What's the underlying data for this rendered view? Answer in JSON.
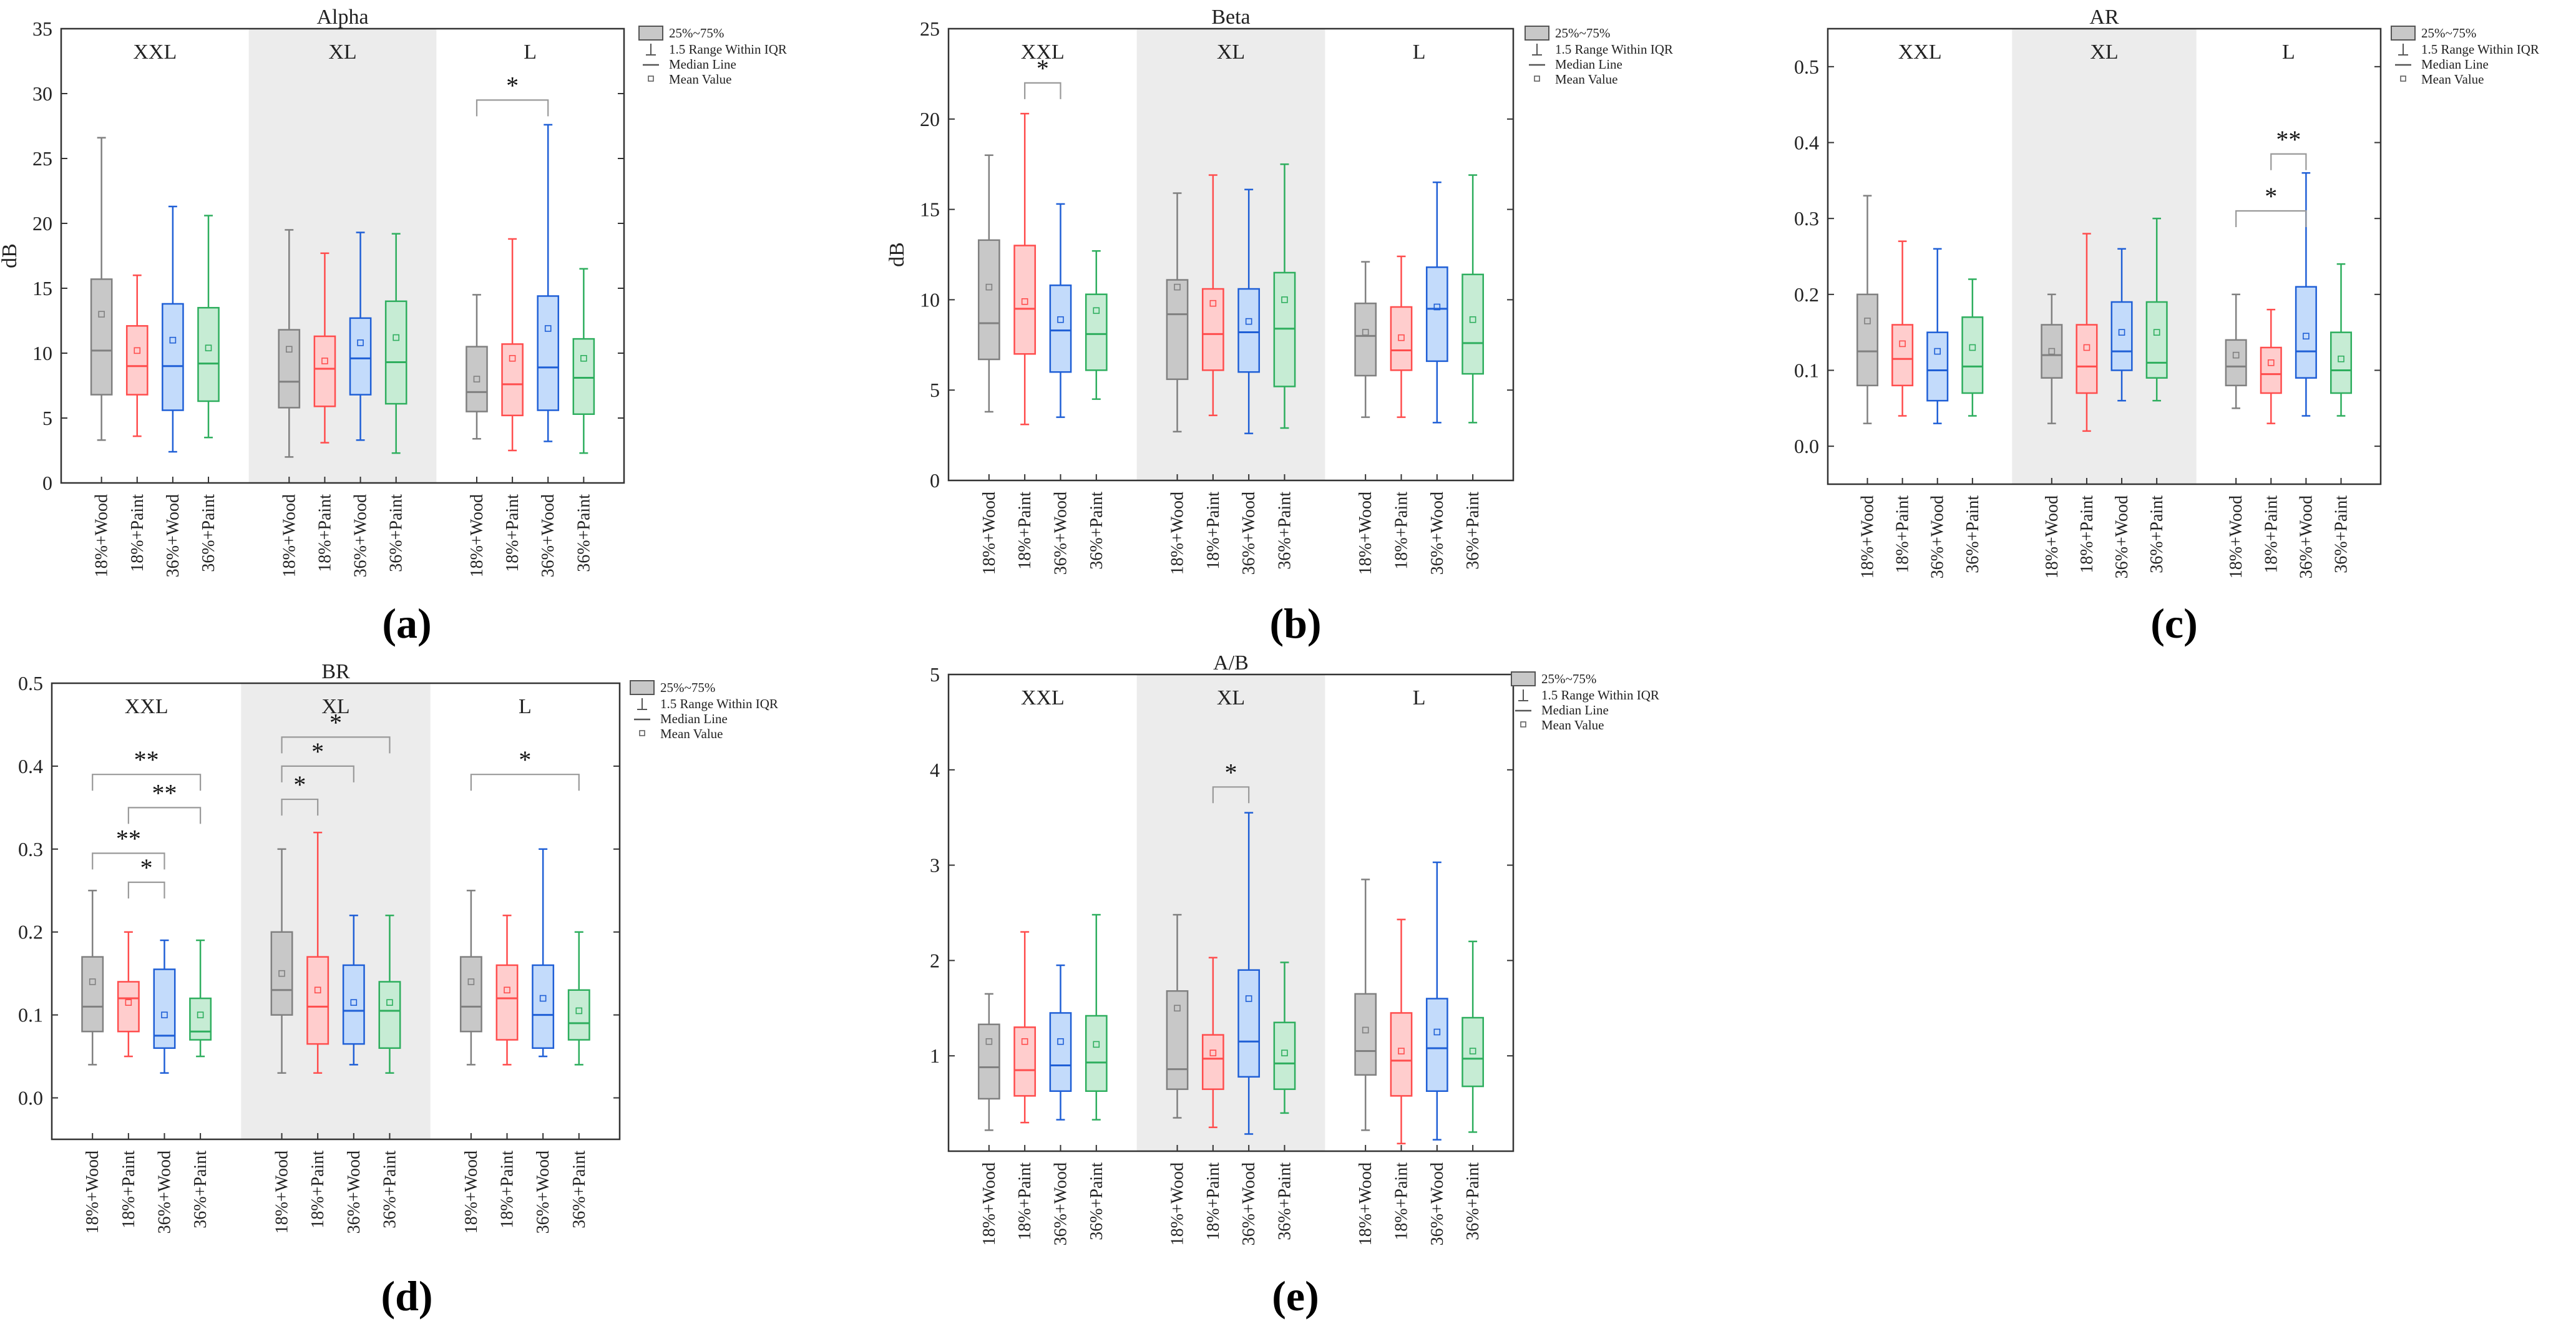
{
  "figure": {
    "categories": [
      "18%+Wood",
      "18%+Paint",
      "36%+Wood",
      "36%+Paint"
    ],
    "colors": {
      "series": [
        "#808080",
        "#ff4d4d",
        "#1f5fd6",
        "#2eae5e"
      ],
      "fills": [
        "#c8c8c8",
        "#ffcdcd",
        "#c3dbfb",
        "#c6ecd4"
      ],
      "shade": "#ececec",
      "axis": "#333333"
    },
    "legend": {
      "box_label": "25%~75%",
      "range_label": "1.5 Range Within IQR",
      "median_label": "Median Line",
      "mean_label": "Mean Value"
    }
  },
  "chart_data": [
    {
      "type": "box",
      "panel": "a",
      "panel_label": "(a)",
      "title": "Alpha",
      "ylabel": "dB",
      "ylim": [
        0,
        35
      ],
      "yticks": [
        0,
        5,
        10,
        15,
        20,
        25,
        30,
        35
      ],
      "groups": [
        {
          "name": "XXL",
          "shaded": false,
          "category_labels": [
            "18%+Wood",
            "18%+Paint",
            "36%+Wood",
            "36%+Paint"
          ],
          "boxes": [
            {
              "min": 3.3,
              "q1": 6.8,
              "median": 10.2,
              "q3": 15.7,
              "max": 26.6,
              "mean": 13.0
            },
            {
              "min": 3.6,
              "q1": 6.8,
              "median": 9.0,
              "q3": 12.1,
              "max": 16.0,
              "mean": 10.2
            },
            {
              "min": 2.4,
              "q1": 5.6,
              "median": 9.0,
              "q3": 13.8,
              "max": 21.3,
              "mean": 11.0
            },
            {
              "min": 3.5,
              "q1": 6.3,
              "median": 9.2,
              "q3": 13.5,
              "max": 20.6,
              "mean": 10.4
            }
          ]
        },
        {
          "name": "XL",
          "shaded": true,
          "category_labels": [
            "18%+Wood",
            "18%+Paint",
            "36%+Wood",
            "36%+Paint"
          ],
          "boxes": [
            {
              "min": 2.0,
              "q1": 5.8,
              "median": 7.8,
              "q3": 11.8,
              "max": 19.5,
              "mean": 10.3
            },
            {
              "min": 3.1,
              "q1": 5.9,
              "median": 8.8,
              "q3": 11.3,
              "max": 17.7,
              "mean": 9.4
            },
            {
              "min": 3.3,
              "q1": 6.8,
              "median": 9.6,
              "q3": 12.7,
              "max": 19.3,
              "mean": 10.8
            },
            {
              "min": 2.3,
              "q1": 6.1,
              "median": 9.3,
              "q3": 14.0,
              "max": 19.2,
              "mean": 11.2
            }
          ]
        },
        {
          "name": "L",
          "shaded": false,
          "category_labels": [
            "18%+Wood",
            "18%+Paint",
            "36%+Wood",
            "36%+Paint"
          ],
          "boxes": [
            {
              "min": 3.4,
              "q1": 5.5,
              "median": 7.0,
              "q3": 10.5,
              "max": 14.5,
              "mean": 8.0
            },
            {
              "min": 2.5,
              "q1": 5.2,
              "median": 7.6,
              "q3": 10.7,
              "max": 18.8,
              "mean": 9.6
            },
            {
              "min": 3.2,
              "q1": 5.6,
              "median": 8.9,
              "q3": 14.4,
              "max": 27.6,
              "mean": 11.9
            },
            {
              "min": 2.3,
              "q1": 5.3,
              "median": 8.1,
              "q3": 11.1,
              "max": 16.5,
              "mean": 9.6
            }
          ]
        }
      ],
      "significance": [
        {
          "group": 2,
          "from": 0,
          "to": 2,
          "level": 29.5,
          "label": "*"
        }
      ]
    },
    {
      "type": "box",
      "panel": "b",
      "panel_label": "(b)",
      "title": "Beta",
      "ylabel": "dB",
      "ylim": [
        0,
        25
      ],
      "yticks": [
        0,
        5,
        10,
        15,
        20,
        25
      ],
      "groups": [
        {
          "name": "XXL",
          "shaded": false,
          "category_labels": [
            "18%+Wood",
            "18%+Paint",
            "36%+Wood",
            "36%+Paint"
          ],
          "boxes": [
            {
              "min": 3.8,
              "q1": 6.7,
              "median": 8.7,
              "q3": 13.3,
              "max": 18.0,
              "mean": 10.7
            },
            {
              "min": 3.1,
              "q1": 7.0,
              "median": 9.5,
              "q3": 13.0,
              "max": 20.3,
              "mean": 9.9
            },
            {
              "min": 3.5,
              "q1": 6.0,
              "median": 8.3,
              "q3": 10.8,
              "max": 15.3,
              "mean": 8.9
            },
            {
              "min": 4.5,
              "q1": 6.1,
              "median": 8.1,
              "q3": 10.3,
              "max": 12.7,
              "mean": 9.4
            }
          ]
        },
        {
          "name": "XL",
          "shaded": true,
          "category_labels": [
            "18%+Wood",
            "18%+Paint",
            "36%+Wood",
            "36%+Paint"
          ],
          "boxes": [
            {
              "min": 2.7,
              "q1": 5.6,
              "median": 9.2,
              "q3": 11.1,
              "max": 15.9,
              "mean": 10.7
            },
            {
              "min": 3.6,
              "q1": 6.1,
              "median": 8.1,
              "q3": 10.6,
              "max": 16.9,
              "mean": 9.8
            },
            {
              "min": 2.6,
              "q1": 6.0,
              "median": 8.2,
              "q3": 10.6,
              "max": 16.1,
              "mean": 8.8
            },
            {
              "min": 2.9,
              "q1": 5.2,
              "median": 8.4,
              "q3": 11.5,
              "max": 17.5,
              "mean": 10.0
            }
          ]
        },
        {
          "name": "L",
          "shaded": false,
          "category_labels": [
            "18%+Wood",
            "18%+Paint",
            "36%+Wood",
            "36%+Paint"
          ],
          "boxes": [
            {
              "min": 3.5,
              "q1": 5.8,
              "median": 8.0,
              "q3": 9.8,
              "max": 12.1,
              "mean": 8.2
            },
            {
              "min": 3.5,
              "q1": 6.1,
              "median": 7.2,
              "q3": 9.6,
              "max": 12.4,
              "mean": 7.9
            },
            {
              "min": 3.2,
              "q1": 6.6,
              "median": 9.5,
              "q3": 11.8,
              "max": 16.5,
              "mean": 9.6
            },
            {
              "min": 3.2,
              "q1": 5.9,
              "median": 7.6,
              "q3": 11.4,
              "max": 16.9,
              "mean": 8.9
            }
          ]
        }
      ],
      "significance": [
        {
          "group": 0,
          "from": 1,
          "to": 2,
          "level": 22.0,
          "label": "*"
        }
      ]
    },
    {
      "type": "box",
      "panel": "c",
      "panel_label": "(c)",
      "title": "AR",
      "ylabel": "",
      "ylim": [
        -0.05,
        0.55
      ],
      "yticks": [
        0.0,
        0.1,
        0.2,
        0.3,
        0.4,
        0.5
      ],
      "groups": [
        {
          "name": "XXL",
          "shaded": false,
          "category_labels": [
            "18%+Wood",
            "18%+Paint",
            "36%+Wood",
            "36%+Paint"
          ],
          "boxes": [
            {
              "min": 0.03,
              "q1": 0.08,
              "median": 0.125,
              "q3": 0.2,
              "max": 0.33,
              "mean": 0.165
            },
            {
              "min": 0.04,
              "q1": 0.08,
              "median": 0.115,
              "q3": 0.16,
              "max": 0.27,
              "mean": 0.135
            },
            {
              "min": 0.03,
              "q1": 0.06,
              "median": 0.1,
              "q3": 0.15,
              "max": 0.26,
              "mean": 0.125
            },
            {
              "min": 0.04,
              "q1": 0.07,
              "median": 0.105,
              "q3": 0.17,
              "max": 0.22,
              "mean": 0.13
            }
          ]
        },
        {
          "name": "XL",
          "shaded": true,
          "category_labels": [
            "18%+Wood",
            "18%+Paint",
            "36%+Wood",
            "36%+Paint"
          ],
          "boxes": [
            {
              "min": 0.03,
              "q1": 0.09,
              "median": 0.12,
              "q3": 0.16,
              "max": 0.2,
              "mean": 0.125
            },
            {
              "min": 0.02,
              "q1": 0.07,
              "median": 0.105,
              "q3": 0.16,
              "max": 0.28,
              "mean": 0.13
            },
            {
              "min": 0.06,
              "q1": 0.1,
              "median": 0.125,
              "q3": 0.19,
              "max": 0.26,
              "mean": 0.15
            },
            {
              "min": 0.06,
              "q1": 0.09,
              "median": 0.11,
              "q3": 0.19,
              "max": 0.3,
              "mean": 0.15
            }
          ]
        },
        {
          "name": "L",
          "shaded": false,
          "category_labels": [
            "18%+Wood",
            "18%+Paint",
            "36%+Wood",
            "36%+Paint"
          ],
          "boxes": [
            {
              "min": 0.05,
              "q1": 0.08,
              "median": 0.105,
              "q3": 0.14,
              "max": 0.2,
              "mean": 0.12
            },
            {
              "min": 0.03,
              "q1": 0.07,
              "median": 0.095,
              "q3": 0.13,
              "max": 0.18,
              "mean": 0.11
            },
            {
              "min": 0.04,
              "q1": 0.09,
              "median": 0.125,
              "q3": 0.21,
              "max": 0.36,
              "mean": 0.145
            },
            {
              "min": 0.04,
              "q1": 0.07,
              "median": 0.1,
              "q3": 0.15,
              "max": 0.24,
              "mean": 0.115
            }
          ]
        }
      ],
      "significance": [
        {
          "group": 2,
          "from": 1,
          "to": 2,
          "level": 0.385,
          "label": "**"
        },
        {
          "group": 2,
          "from": 0,
          "to": 2,
          "level": 0.31,
          "label": "*"
        }
      ]
    },
    {
      "type": "box",
      "panel": "d",
      "panel_label": "(d)",
      "title": "BR",
      "ylabel": "",
      "ylim": [
        -0.05,
        0.5
      ],
      "yticks": [
        0.0,
        0.1,
        0.2,
        0.3,
        0.4,
        0.5
      ],
      "groups": [
        {
          "name": "XXL",
          "shaded": false,
          "category_labels": [
            "18%+Wood",
            "18%+Paint",
            "36%+Wood",
            "36%+Paint"
          ],
          "boxes": [
            {
              "min": 0.04,
              "q1": 0.08,
              "median": 0.11,
              "q3": 0.17,
              "max": 0.25,
              "mean": 0.14
            },
            {
              "min": 0.05,
              "q1": 0.08,
              "median": 0.12,
              "q3": 0.14,
              "max": 0.2,
              "mean": 0.115
            },
            {
              "min": 0.03,
              "q1": 0.06,
              "median": 0.075,
              "q3": 0.155,
              "max": 0.19,
              "mean": 0.1
            },
            {
              "min": 0.05,
              "q1": 0.07,
              "median": 0.08,
              "q3": 0.12,
              "max": 0.19,
              "mean": 0.1
            }
          ]
        },
        {
          "name": "XL",
          "shaded": true,
          "category_labels": [
            "18%+Wood",
            "18%+Paint",
            "36%+Wood",
            "36%+Paint"
          ],
          "boxes": [
            {
              "min": 0.03,
              "q1": 0.1,
              "median": 0.13,
              "q3": 0.2,
              "max": 0.3,
              "mean": 0.15
            },
            {
              "min": 0.03,
              "q1": 0.065,
              "median": 0.11,
              "q3": 0.17,
              "max": 0.32,
              "mean": 0.13
            },
            {
              "min": 0.04,
              "q1": 0.065,
              "median": 0.105,
              "q3": 0.16,
              "max": 0.22,
              "mean": 0.115
            },
            {
              "min": 0.03,
              "q1": 0.06,
              "median": 0.105,
              "q3": 0.14,
              "max": 0.22,
              "mean": 0.115
            }
          ]
        },
        {
          "name": "L",
          "shaded": false,
          "category_labels": [
            "18%+Wood",
            "18%+Paint",
            "36%+Wood",
            "36%+Paint"
          ],
          "boxes": [
            {
              "min": 0.04,
              "q1": 0.08,
              "median": 0.11,
              "q3": 0.17,
              "max": 0.25,
              "mean": 0.14
            },
            {
              "min": 0.04,
              "q1": 0.07,
              "median": 0.12,
              "q3": 0.16,
              "max": 0.22,
              "mean": 0.13
            },
            {
              "min": 0.05,
              "q1": 0.06,
              "median": 0.1,
              "q3": 0.16,
              "max": 0.3,
              "mean": 0.12
            },
            {
              "min": 0.04,
              "q1": 0.07,
              "median": 0.09,
              "q3": 0.13,
              "max": 0.2,
              "mean": 0.105
            }
          ]
        }
      ],
      "significance": [
        {
          "group": 0,
          "from": 1,
          "to": 2,
          "level": 0.26,
          "label": "*"
        },
        {
          "group": 0,
          "from": 0,
          "to": 2,
          "level": 0.295,
          "label": "**"
        },
        {
          "group": 0,
          "from": 1,
          "to": 3,
          "level": 0.35,
          "label": "**"
        },
        {
          "group": 0,
          "from": 0,
          "to": 3,
          "level": 0.39,
          "label": "**"
        },
        {
          "group": 1,
          "from": 0,
          "to": 1,
          "level": 0.36,
          "label": "*"
        },
        {
          "group": 1,
          "from": 0,
          "to": 2,
          "level": 0.4,
          "label": "*"
        },
        {
          "group": 1,
          "from": 0,
          "to": 3,
          "level": 0.435,
          "label": "*"
        },
        {
          "group": 2,
          "from": 0,
          "to": 3,
          "level": 0.39,
          "label": "*"
        }
      ]
    },
    {
      "type": "box",
      "panel": "e",
      "panel_label": "(e)",
      "title": "A/B",
      "ylabel": "",
      "ylim": [
        0,
        5
      ],
      "yticks": [
        1,
        2,
        3,
        4,
        5
      ],
      "groups": [
        {
          "name": "XXL",
          "shaded": false,
          "category_labels": [
            "18%+Wood",
            "18%+Paint",
            "36%+Wood",
            "36%+Paint"
          ],
          "boxes": [
            {
              "min": 0.22,
              "q1": 0.55,
              "median": 0.88,
              "q3": 1.33,
              "max": 1.65,
              "mean": 1.15
            },
            {
              "min": 0.3,
              "q1": 0.58,
              "median": 0.85,
              "q3": 1.3,
              "max": 2.3,
              "mean": 1.15
            },
            {
              "min": 0.33,
              "q1": 0.63,
              "median": 0.9,
              "q3": 1.45,
              "max": 1.95,
              "mean": 1.15
            },
            {
              "min": 0.33,
              "q1": 0.63,
              "median": 0.93,
              "q3": 1.42,
              "max": 2.48,
              "mean": 1.12
            }
          ]
        },
        {
          "name": "XL",
          "shaded": true,
          "category_labels": [
            "18%+Wood",
            "18%+Paint",
            "36%+Wood",
            "36%+Paint"
          ],
          "boxes": [
            {
              "min": 0.35,
              "q1": 0.65,
              "median": 0.86,
              "q3": 1.68,
              "max": 2.48,
              "mean": 1.5
            },
            {
              "min": 0.25,
              "q1": 0.65,
              "median": 0.97,
              "q3": 1.22,
              "max": 2.03,
              "mean": 1.03
            },
            {
              "min": 0.18,
              "q1": 0.78,
              "median": 1.15,
              "q3": 1.9,
              "max": 3.55,
              "mean": 1.6
            },
            {
              "min": 0.4,
              "q1": 0.65,
              "median": 0.92,
              "q3": 1.35,
              "max": 1.98,
              "mean": 1.03
            }
          ]
        },
        {
          "name": "L",
          "shaded": false,
          "category_labels": [
            "18%+Wood",
            "18%+Paint",
            "36%+Wood",
            "36%+Paint"
          ],
          "boxes": [
            {
              "min": 0.22,
              "q1": 0.8,
              "median": 1.05,
              "q3": 1.65,
              "max": 2.85,
              "mean": 1.27
            },
            {
              "min": 0.08,
              "q1": 0.58,
              "median": 0.95,
              "q3": 1.45,
              "max": 2.43,
              "mean": 1.05
            },
            {
              "min": 0.12,
              "q1": 0.63,
              "median": 1.08,
              "q3": 1.6,
              "max": 3.03,
              "mean": 1.25
            },
            {
              "min": 0.2,
              "q1": 0.68,
              "median": 0.97,
              "q3": 1.4,
              "max": 2.2,
              "mean": 1.05
            }
          ]
        }
      ],
      "significance": [
        {
          "group": 1,
          "from": 1,
          "to": 2,
          "level": 3.82,
          "label": "*"
        }
      ]
    }
  ]
}
